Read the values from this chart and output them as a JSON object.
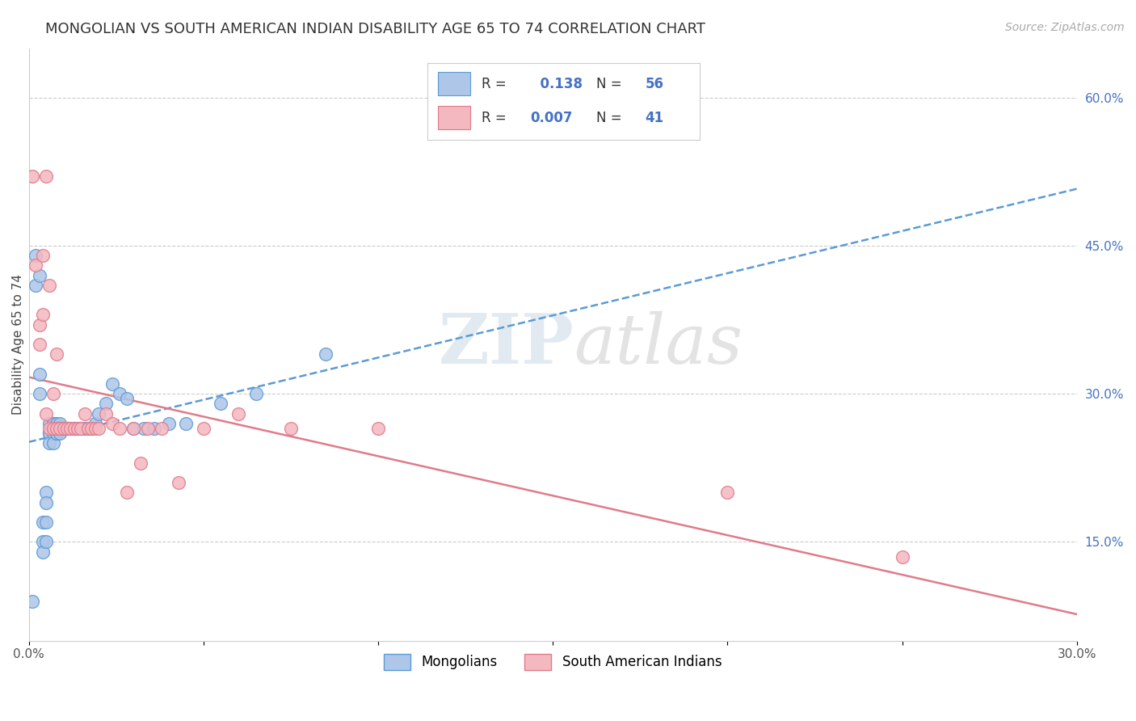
{
  "title": "MONGOLIAN VS SOUTH AMERICAN INDIAN DISABILITY AGE 65 TO 74 CORRELATION CHART",
  "source": "Source: ZipAtlas.com",
  "ylabel": "Disability Age 65 to 74",
  "xlim": [
    0.0,
    0.3
  ],
  "ylim": [
    0.05,
    0.65
  ],
  "yticks_right": [
    0.15,
    0.3,
    0.45,
    0.6
  ],
  "ytick_right_labels": [
    "15.0%",
    "30.0%",
    "45.0%",
    "60.0%"
  ],
  "mongolian_color": "#aec6e8",
  "mongolian_edge_color": "#5b9bd5",
  "sam_indian_color": "#f4b8c1",
  "sam_indian_edge_color": "#e07b8a",
  "mongolian_R": 0.138,
  "mongolian_N": 56,
  "sam_indian_R": 0.007,
  "sam_indian_N": 41,
  "trend_mongolian_color": "#5b9bd5",
  "trend_sam_color": "#e07b8a",
  "watermark_zip": "ZIP",
  "watermark_atlas": "atlas",
  "background_color": "#ffffff",
  "grid_color": "#cccccc",
  "title_fontsize": 13,
  "axis_label_fontsize": 11,
  "mongolian_x": [
    0.001,
    0.002,
    0.002,
    0.003,
    0.003,
    0.003,
    0.004,
    0.004,
    0.004,
    0.005,
    0.005,
    0.005,
    0.005,
    0.006,
    0.006,
    0.006,
    0.006,
    0.007,
    0.007,
    0.007,
    0.007,
    0.008,
    0.008,
    0.008,
    0.009,
    0.009,
    0.009,
    0.009,
    0.01,
    0.01,
    0.01,
    0.011,
    0.011,
    0.012,
    0.012,
    0.013,
    0.013,
    0.014,
    0.015,
    0.016,
    0.017,
    0.018,
    0.019,
    0.02,
    0.022,
    0.024,
    0.026,
    0.028,
    0.03,
    0.033,
    0.036,
    0.04,
    0.045,
    0.055,
    0.065,
    0.085
  ],
  "mongolian_y": [
    0.09,
    0.44,
    0.41,
    0.42,
    0.32,
    0.3,
    0.15,
    0.17,
    0.14,
    0.2,
    0.19,
    0.17,
    0.15,
    0.27,
    0.26,
    0.26,
    0.25,
    0.27,
    0.27,
    0.26,
    0.25,
    0.26,
    0.26,
    0.27,
    0.27,
    0.265,
    0.265,
    0.26,
    0.265,
    0.265,
    0.265,
    0.265,
    0.265,
    0.265,
    0.265,
    0.265,
    0.265,
    0.265,
    0.265,
    0.265,
    0.265,
    0.265,
    0.27,
    0.28,
    0.29,
    0.31,
    0.3,
    0.295,
    0.265,
    0.265,
    0.265,
    0.27,
    0.27,
    0.29,
    0.3,
    0.34
  ],
  "sam_x": [
    0.001,
    0.002,
    0.003,
    0.003,
    0.004,
    0.004,
    0.005,
    0.005,
    0.006,
    0.006,
    0.007,
    0.007,
    0.008,
    0.008,
    0.009,
    0.01,
    0.011,
    0.012,
    0.013,
    0.014,
    0.015,
    0.016,
    0.017,
    0.018,
    0.019,
    0.02,
    0.022,
    0.024,
    0.026,
    0.028,
    0.03,
    0.032,
    0.034,
    0.038,
    0.043,
    0.05,
    0.06,
    0.075,
    0.1,
    0.2,
    0.25
  ],
  "sam_y": [
    0.52,
    0.43,
    0.37,
    0.35,
    0.44,
    0.38,
    0.52,
    0.28,
    0.41,
    0.265,
    0.3,
    0.265,
    0.34,
    0.265,
    0.265,
    0.265,
    0.265,
    0.265,
    0.265,
    0.265,
    0.265,
    0.28,
    0.265,
    0.265,
    0.265,
    0.265,
    0.28,
    0.27,
    0.265,
    0.2,
    0.265,
    0.23,
    0.265,
    0.265,
    0.21,
    0.265,
    0.28,
    0.265,
    0.265,
    0.2,
    0.135
  ]
}
